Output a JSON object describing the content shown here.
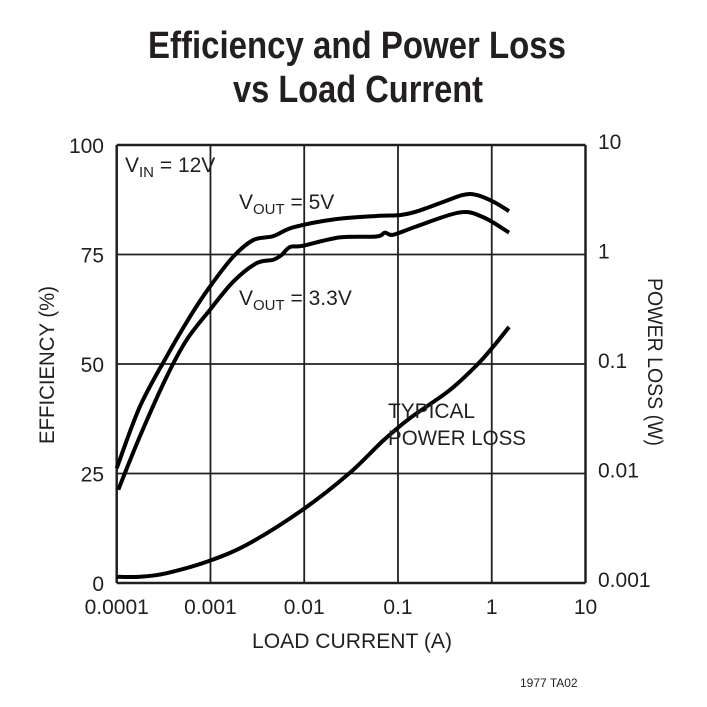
{
  "chart_data": {
    "type": "line",
    "title": [
      "Efficiency and Power Loss",
      "vs Load Current"
    ],
    "xlabel": "LOAD CURRENT (A)",
    "ylabel": "EFFICIENCY (%)",
    "y2label": "POWER LOSS (W)",
    "x_scale": "log",
    "xlim": [
      0.0001,
      10
    ],
    "ylim": [
      0,
      100
    ],
    "y2_scale": "log",
    "y2lim": [
      0.001,
      10
    ],
    "grid": true,
    "x_ticks": [
      "0.0001",
      "0.001",
      "0.01",
      "0.1",
      "1",
      "10"
    ],
    "y_ticks": [
      "100",
      "75",
      "50",
      "25",
      "0"
    ],
    "y2_ticks": [
      "10",
      "1",
      "0.1",
      "0.01",
      "0.001"
    ],
    "annotations": {
      "vin": {
        "main": "V",
        "sub": "IN",
        "rest": " = 12V"
      },
      "vout5": {
        "main": "V",
        "sub": "OUT",
        "rest": " = 5V"
      },
      "vout33": {
        "main": "V",
        "sub": "OUT",
        "rest": " = 3.3V"
      },
      "loss_line1": "TYPICAL",
      "loss_line2": "POWER LOSS"
    },
    "series": [
      {
        "name": "VOUT = 5V",
        "axis": "left",
        "x": [
          0.0001,
          0.000177,
          0.000341,
          0.000605,
          0.00099,
          0.00175,
          0.00286,
          0.00468,
          0.00764,
          0.0204,
          0.059,
          0.105,
          0.157,
          0.279,
          0.494,
          0.687,
          1.03,
          1.53
        ],
        "y": [
          26.2,
          40.3,
          51.7,
          60.8,
          67.7,
          74.5,
          78.3,
          79.2,
          81.2,
          83.0,
          83.8,
          84.0,
          84.8,
          86.7,
          88.6,
          88.6,
          87.1,
          84.9
        ]
      },
      {
        "name": "VOUT = 3.3V",
        "axis": "left",
        "x": [
          0.000104,
          0.000177,
          0.000341,
          0.000557,
          0.00099,
          0.00175,
          0.00309,
          0.00468,
          0.00574,
          0.00704,
          0.00974,
          0.0239,
          0.059,
          0.0725,
          0.0888,
          0.157,
          0.456,
          0.813,
          1.53
        ],
        "y": [
          21.3,
          33.5,
          47.1,
          55.5,
          62.4,
          68.8,
          73.0,
          73.8,
          74.9,
          76.7,
          77.0,
          78.9,
          79.1,
          80.0,
          79.5,
          81.4,
          84.6,
          83.5,
          80.0
        ]
      },
      {
        "name": "TYPICAL POWER LOSS",
        "axis": "right",
        "x": [
          0.0001,
          0.000177,
          0.000341,
          0.00099,
          0.00264,
          0.00974,
          0.0305,
          0.0697,
          0.134,
          0.35,
          0.687,
          1.03,
          1.53
        ],
        "y": [
          0.00114,
          0.00114,
          0.00123,
          0.0016,
          0.00232,
          0.0047,
          0.0101,
          0.02,
          0.032,
          0.057,
          0.097,
          0.143,
          0.218
        ]
      }
    ],
    "footer": "1977 TA02",
    "line_color": "#000000"
  }
}
